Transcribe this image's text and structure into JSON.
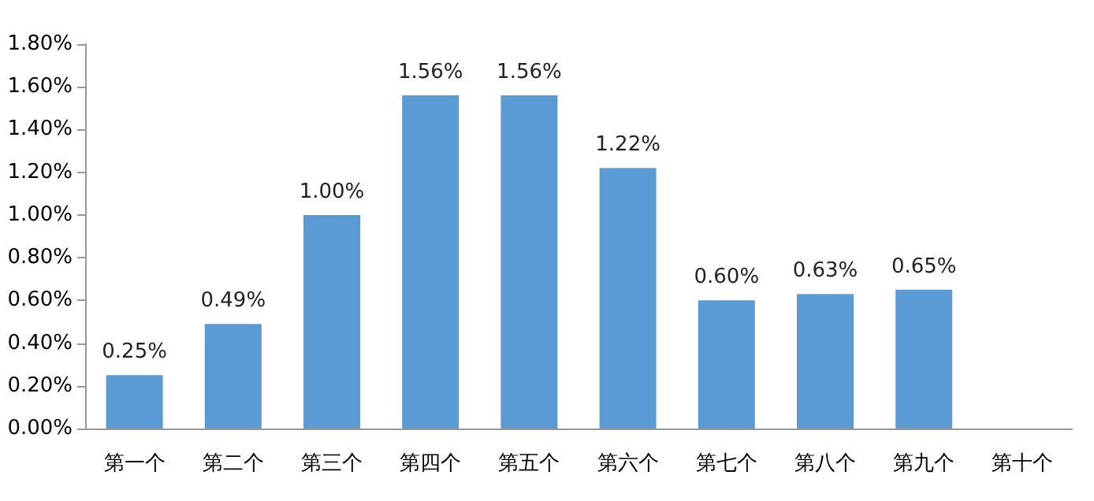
{
  "chart_data": {
    "type": "bar",
    "categories": [
      "第一个",
      "第二个",
      "第三个",
      "第四个",
      "第五个",
      "第六个",
      "第七个",
      "第八个",
      "第九个",
      "第十个"
    ],
    "values": [
      0.25,
      0.49,
      1.0,
      1.56,
      1.56,
      1.22,
      0.6,
      0.63,
      0.65,
      null
    ],
    "value_labels": [
      "0.25%",
      "0.49%",
      "1.00%",
      "1.56%",
      "1.56%",
      "1.22%",
      "0.60%",
      "0.63%",
      "0.65%",
      null
    ],
    "color": "#5b9bd5",
    "ylim": [
      0,
      1.8
    ],
    "yticks": [
      {
        "value": 0,
        "label": "0.00%"
      },
      {
        "value": 0.2,
        "label": "0.20%"
      },
      {
        "value": 0.4,
        "label": "0.40%"
      },
      {
        "value": 0.6,
        "label": "0.60%"
      },
      {
        "value": 0.8,
        "label": "0.80%"
      },
      {
        "value": 1,
        "label": "1.00%"
      },
      {
        "value": 1.2,
        "label": "1.20%"
      },
      {
        "value": 1.4,
        "label": "1.40%"
      },
      {
        "value": 1.6,
        "label": "1.60%"
      },
      {
        "value": 1.8,
        "label": "1.80%"
      }
    ],
    "grid": false
  }
}
